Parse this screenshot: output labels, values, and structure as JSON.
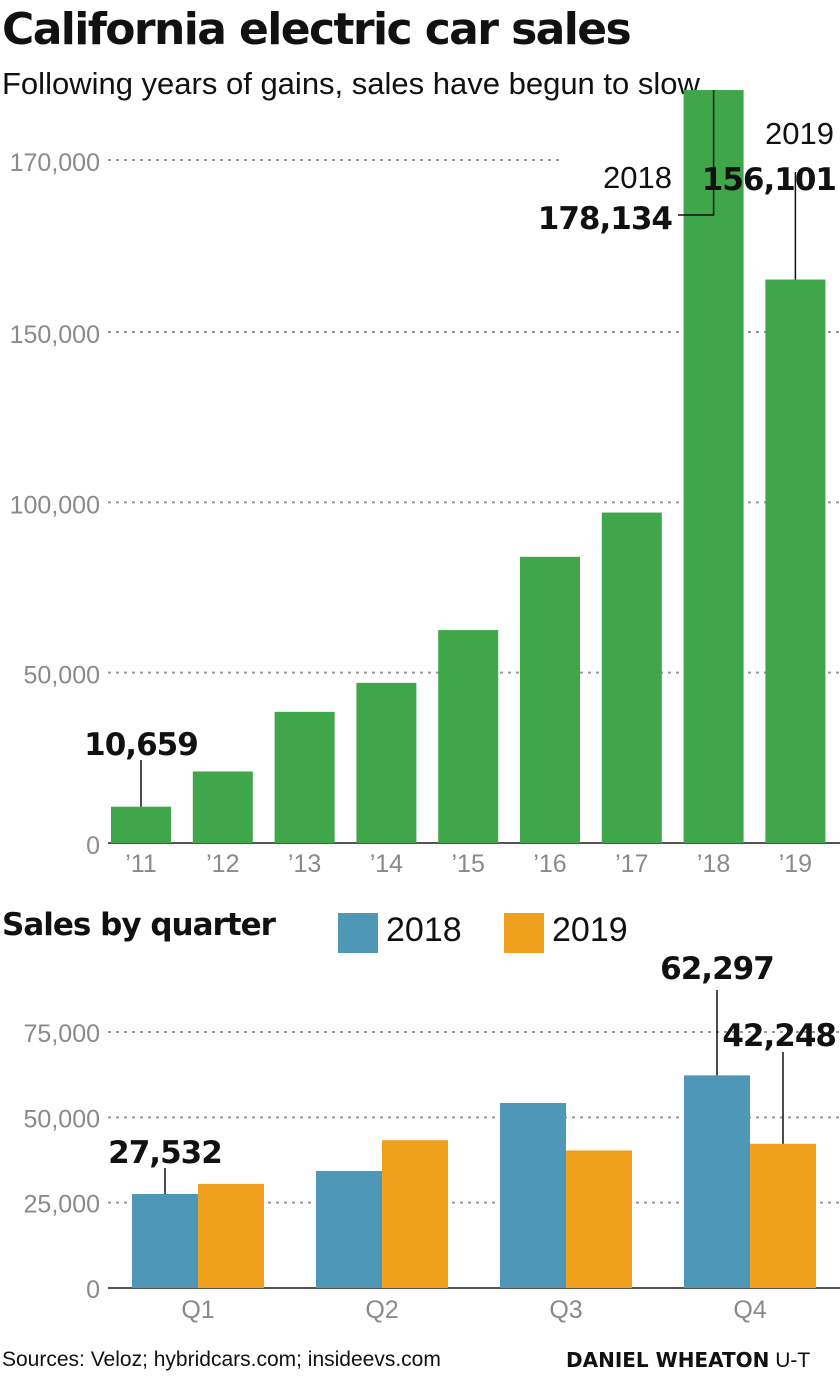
{
  "title": "California electric car sales",
  "subtitle": "Following years of gains, sales have begun to slow.",
  "colors": {
    "annual_bar": "#3fa74a",
    "q2018": "#4e97b7",
    "q2019": "#efa11e",
    "grid": "#999999",
    "axis": "#555555",
    "tick": "#8a8a8a"
  },
  "chart_data": [
    {
      "type": "bar",
      "categories": [
        "’11",
        "’12",
        "’13",
        "’14",
        "’15",
        "’16",
        "’17",
        "’18",
        "’19"
      ],
      "values": [
        10659,
        21000,
        38500,
        47000,
        62500,
        84000,
        97000,
        178134,
        156101
      ],
      "yticks": [
        0,
        50000,
        100000,
        150000,
        170000
      ],
      "ytick_labels": [
        "0",
        "50,000",
        "100,000",
        "150,000",
        "170,000"
      ],
      "grid": true,
      "annotations": [
        {
          "category_index": 0,
          "value_label": "10,659"
        },
        {
          "category_index": 7,
          "year_label": "2018",
          "value_label": "178,134"
        },
        {
          "category_index": 8,
          "year_label": "2019",
          "value_label": "156,101"
        }
      ]
    },
    {
      "type": "bar",
      "title": "Sales by quarter",
      "categories": [
        "Q1",
        "Q2",
        "Q3",
        "Q4"
      ],
      "series": [
        {
          "name": "2018",
          "values": [
            27532,
            34300,
            54200,
            62297
          ]
        },
        {
          "name": "2019",
          "values": [
            30500,
            43300,
            40300,
            42248
          ]
        }
      ],
      "yticks": [
        0,
        25000,
        50000,
        75000
      ],
      "ytick_labels": [
        "0",
        "25,000",
        "50,000",
        "75,000"
      ],
      "grid": true,
      "legend": "top",
      "annotations": [
        {
          "series_index": 0,
          "category_index": 0,
          "value_label": "27,532"
        },
        {
          "series_index": 0,
          "category_index": 3,
          "value_label": "62,297"
        },
        {
          "series_index": 1,
          "category_index": 3,
          "value_label": "42,248"
        }
      ]
    }
  ],
  "footer": {
    "sources": "Sources: Veloz; hybridcars.com; insideevs.com",
    "credit_name": "DANIEL WHEATON",
    "credit_org": "U-T"
  }
}
